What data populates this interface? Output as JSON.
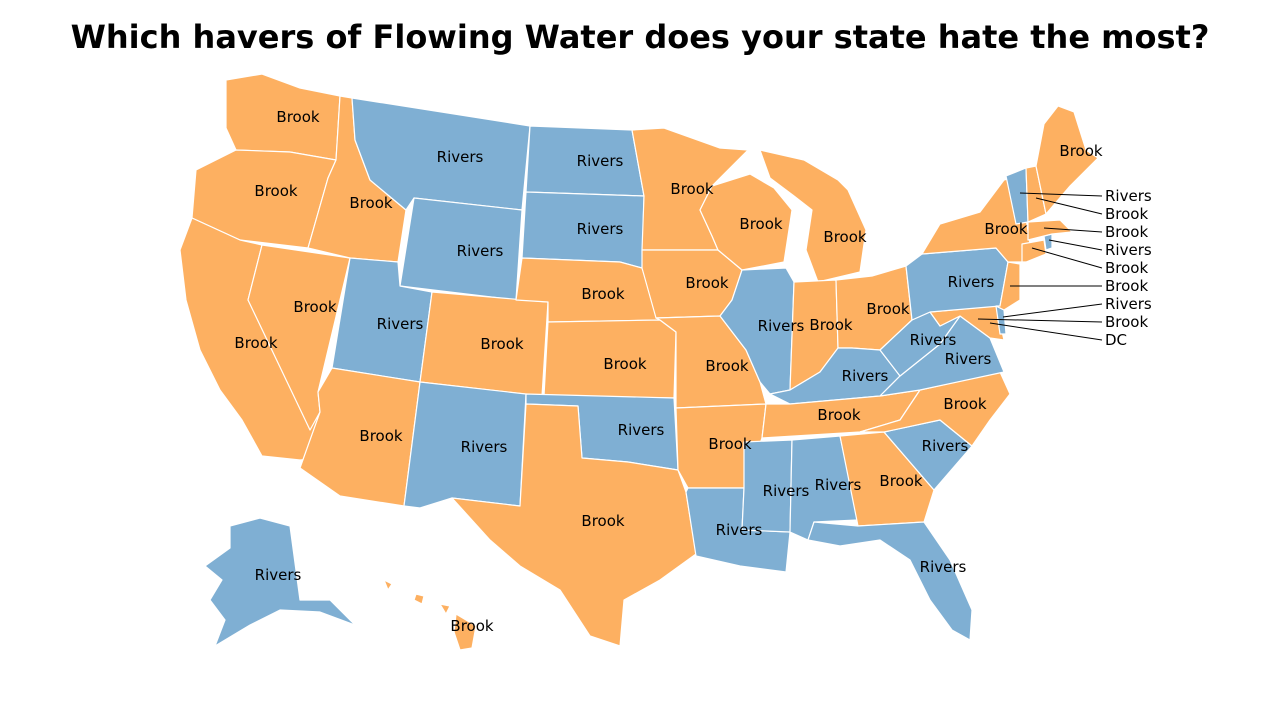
{
  "title": "Which havers of Flowing Water does your state hate the most?",
  "colors": {
    "Brook": "#FDB061",
    "Rivers": "#7FAFD3"
  },
  "states": {
    "WA": "Brook",
    "OR": "Brook",
    "CA": "Brook",
    "NV": "Brook",
    "ID": "Brook",
    "MT": "Rivers",
    "WY": "Rivers",
    "UT": "Rivers",
    "AZ": "Brook",
    "CO": "Brook",
    "NM": "Rivers",
    "ND": "Rivers",
    "SD": "Rivers",
    "NE": "Brook",
    "KS": "Brook",
    "OK": "Rivers",
    "TX": "Brook",
    "MN": "Brook",
    "IA": "Brook",
    "MO": "Brook",
    "AR": "Brook",
    "LA": "Rivers",
    "WI": "Brook",
    "IL": "Rivers",
    "MI": "Brook",
    "IN": "Brook",
    "OH": "Brook",
    "KY": "Rivers",
    "TN": "Brook",
    "MS": "Rivers",
    "AL": "Rivers",
    "GA": "Brook",
    "FL": "Rivers",
    "SC": "Rivers",
    "NC": "Brook",
    "VA": "Rivers",
    "WV": "Rivers",
    "PA": "Rivers",
    "NY": "Brook",
    "ME": "Brook",
    "AK": "Rivers",
    "HI": "Brook",
    "VT": "Rivers",
    "NH": "Brook",
    "MA": "Brook",
    "RI": "Rivers",
    "CT": "Brook",
    "NJ": "Brook",
    "DE": "Rivers",
    "MD": "Brook"
  },
  "map_labels": {
    "WA": "Brook",
    "OR": "Brook",
    "CA": "Brook",
    "NV": "Brook",
    "ID": "Brook",
    "MT": "Rivers",
    "WY": "Rivers",
    "UT": "Rivers",
    "AZ": "Brook",
    "CO": "Brook",
    "NM": "Rivers",
    "ND": "Rivers",
    "SD": "Rivers",
    "NE": "Brook",
    "KS": "Brook",
    "OK": "Rivers",
    "TX": "Brook",
    "MN": "Brook",
    "IA": "Brook",
    "MO": "Brook",
    "AR": "Brook",
    "LA": "Rivers",
    "WI": "Brook",
    "IL": "Rivers",
    "MI": "Brook",
    "IN": "Brook",
    "OH": "Brook",
    "KY": "Rivers",
    "TN": "Brook",
    "MS": "Rivers",
    "AL": "Rivers",
    "GA": "Brook",
    "FL": "Rivers",
    "SC": "Rivers",
    "NC": "Brook",
    "VA": "Rivers",
    "WV": "Rivers",
    "PA": "Rivers",
    "NY": "Brook",
    "ME": "Brook",
    "AK": "Rivers",
    "HI": "Brook"
  },
  "callouts": [
    "Rivers",
    "Brook",
    "Brook",
    "Rivers",
    "Brook",
    "Brook",
    "Rivers",
    "Brook",
    "DC"
  ]
}
